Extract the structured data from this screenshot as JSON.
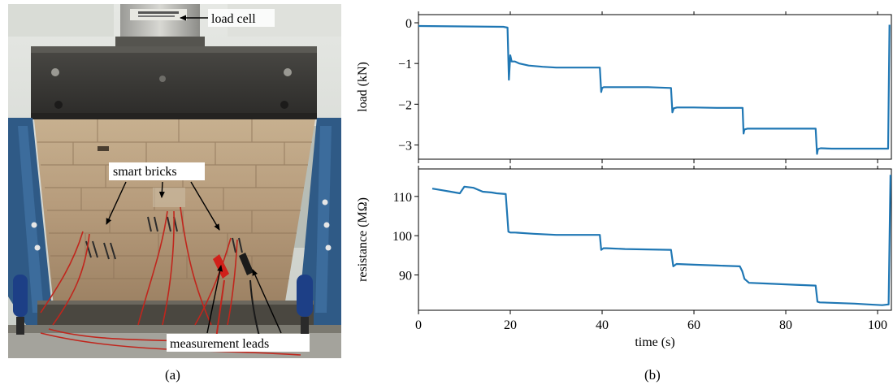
{
  "photo": {
    "callouts": {
      "load_cell": "load cell",
      "smart_bricks": "smart bricks",
      "measurement_leads": "measurement leads"
    },
    "colors": {
      "frame_blue": "#2f5a86",
      "brick": "#b9a183",
      "steel": "#3b3a37",
      "wire_red": "#c0261d"
    }
  },
  "panel_labels": {
    "a": "(a)",
    "b": "(b)"
  },
  "chart_data": [
    {
      "type": "line",
      "xlabel": "",
      "ylabel": "load (kN)",
      "xlim": [
        0,
        103
      ],
      "ylim": [
        -3.35,
        0.2
      ],
      "yticks": [
        0,
        -1,
        -2,
        -3
      ],
      "xticks": [
        0,
        20,
        40,
        60,
        80,
        100
      ],
      "show_x_ticklabels": false,
      "color": "#1f77b4",
      "x": [
        0,
        18.5,
        19.4,
        19.7,
        20.0,
        20.3,
        21,
        22,
        24,
        27,
        30,
        35,
        39.5,
        39.8,
        40.0,
        40.4,
        41,
        45,
        50,
        55.0,
        55.3,
        55.6,
        56.3,
        60,
        65,
        70.6,
        70.8,
        71.0,
        71.6,
        76,
        82,
        86.5,
        86.8,
        87.0,
        87.6,
        90,
        95,
        100,
        102.3,
        102.6
      ],
      "y": [
        -0.08,
        -0.1,
        -0.12,
        -1.4,
        -0.8,
        -0.95,
        -0.95,
        -1.0,
        -1.05,
        -1.08,
        -1.1,
        -1.1,
        -1.1,
        -1.7,
        -1.6,
        -1.58,
        -1.58,
        -1.58,
        -1.58,
        -1.6,
        -2.2,
        -2.1,
        -2.08,
        -2.08,
        -2.09,
        -2.09,
        -2.72,
        -2.62,
        -2.6,
        -2.6,
        -2.6,
        -2.6,
        -3.22,
        -3.1,
        -3.08,
        -3.09,
        -3.09,
        -3.09,
        -3.09,
        -0.05
      ]
    },
    {
      "type": "line",
      "xlabel": "time (s)",
      "ylabel": "resistance (MΩ)",
      "xlim": [
        0,
        103
      ],
      "ylim": [
        81,
        117
      ],
      "yticks": [
        90,
        100,
        110
      ],
      "xticks": [
        0,
        20,
        40,
        60,
        80,
        100
      ],
      "show_x_ticklabels": true,
      "color": "#1f77b4",
      "x": [
        3,
        5,
        7,
        9,
        10,
        12,
        14,
        16,
        17,
        19,
        19.6,
        20,
        21,
        25,
        30,
        35,
        39.5,
        39.8,
        40.3,
        41,
        45,
        50,
        55.0,
        55.5,
        56.2,
        60,
        65,
        70.0,
        70.5,
        71.0,
        72.0,
        76,
        82,
        86.5,
        86.9,
        87.4,
        90,
        95,
        98,
        101,
        102.4,
        102.8
      ],
      "y": [
        112,
        111.6,
        111.2,
        110.8,
        112.5,
        112.2,
        111.2,
        111,
        110.8,
        110.6,
        101,
        100.8,
        100.8,
        100.5,
        100.2,
        100.2,
        100.2,
        96.4,
        96.8,
        96.8,
        96.6,
        96.5,
        96.4,
        92.2,
        92.8,
        92.6,
        92.4,
        92.2,
        91,
        89,
        88,
        87.8,
        87.5,
        87.3,
        83.2,
        83,
        82.9,
        82.7,
        82.5,
        82.3,
        82.5,
        115.5
      ]
    }
  ]
}
